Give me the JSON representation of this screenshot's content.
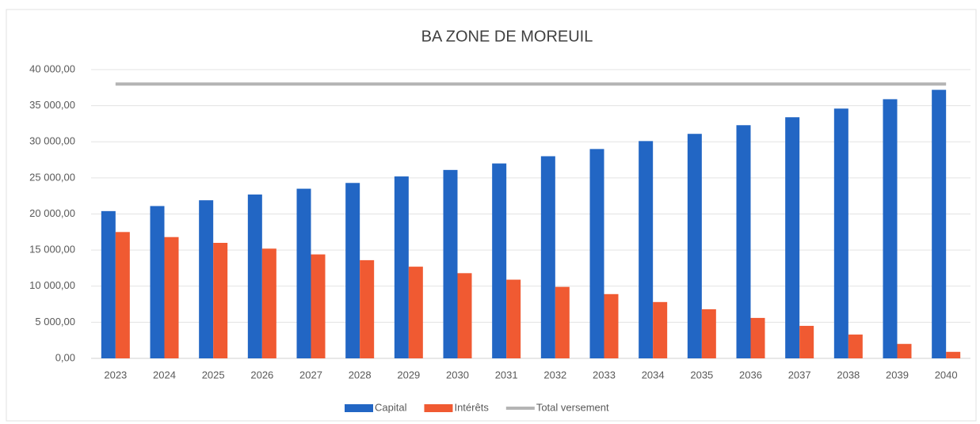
{
  "chart_data": {
    "type": "bar",
    "title": "BA ZONE DE MOREUIL",
    "categories": [
      "2023",
      "2024",
      "2025",
      "2026",
      "2027",
      "2028",
      "2029",
      "2030",
      "2031",
      "2032",
      "2033",
      "2034",
      "2035",
      "2036",
      "2037",
      "2038",
      "2039",
      "2040"
    ],
    "series": [
      {
        "name": "Capital",
        "type": "bar",
        "color": "#2266c4",
        "values": [
          20400,
          21100,
          21900,
          22700,
          23500,
          24300,
          25200,
          26100,
          27000,
          28000,
          29000,
          30100,
          31100,
          32300,
          33400,
          34600,
          35900,
          37200
        ]
      },
      {
        "name": "Intérêts",
        "type": "bar",
        "color": "#f05a32",
        "values": [
          17500,
          16800,
          16000,
          15200,
          14400,
          13600,
          12700,
          11800,
          10900,
          9900,
          8900,
          7800,
          6800,
          5600,
          4500,
          3300,
          2000,
          900
        ]
      },
      {
        "name": "Total versement",
        "type": "line",
        "color": "#b4b4b4",
        "values": [
          38000,
          38000,
          38000,
          38000,
          38000,
          38000,
          38000,
          38000,
          38000,
          38000,
          38000,
          38000,
          38000,
          38000,
          38000,
          38000,
          38000,
          38000
        ]
      }
    ],
    "ylim": [
      0,
      40000
    ],
    "yticks": [
      {
        "value": 0,
        "label": "0,00"
      },
      {
        "value": 5000,
        "label": "5 000,00"
      },
      {
        "value": 10000,
        "label": "10 000,00"
      },
      {
        "value": 15000,
        "label": "15 000,00"
      },
      {
        "value": 20000,
        "label": "20 000,00"
      },
      {
        "value": 25000,
        "label": "25 000,00"
      },
      {
        "value": 30000,
        "label": "30 000,00"
      },
      {
        "value": 35000,
        "label": "35 000,00"
      },
      {
        "value": 40000,
        "label": "40 000,00"
      }
    ],
    "grid": true
  }
}
